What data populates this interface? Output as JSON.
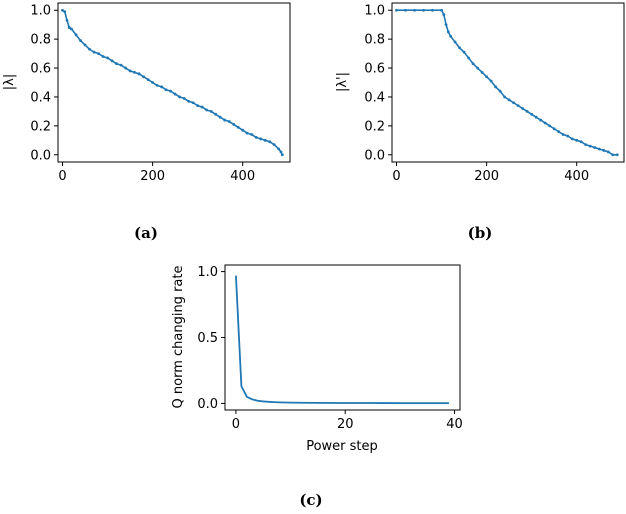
{
  "figure": {
    "captions": [
      "(a)",
      "(b)",
      "(c)"
    ]
  },
  "chart_data": [
    {
      "id": "a",
      "type": "scatter",
      "title": "",
      "xlabel": "",
      "ylabel": "|λ|",
      "xlim": [
        -10,
        505
      ],
      "ylim": [
        -0.05,
        1.05
      ],
      "xticks": [
        0,
        200,
        400
      ],
      "yticks": [
        0.0,
        0.2,
        0.4,
        0.6,
        0.8,
        1.0
      ],
      "ytick_labels": [
        "0.0",
        "0.2",
        "0.4",
        "0.6",
        "0.8",
        "1.0"
      ],
      "color": "#1f77b4",
      "points": [
        [
          0,
          1.0
        ],
        [
          5,
          0.99
        ],
        [
          10,
          0.93
        ],
        [
          15,
          0.88
        ],
        [
          20,
          0.87
        ],
        [
          30,
          0.83
        ],
        [
          40,
          0.79
        ],
        [
          50,
          0.76
        ],
        [
          60,
          0.73
        ],
        [
          70,
          0.71
        ],
        [
          80,
          0.7
        ],
        [
          90,
          0.68
        ],
        [
          100,
          0.67
        ],
        [
          110,
          0.65
        ],
        [
          120,
          0.63
        ],
        [
          130,
          0.62
        ],
        [
          140,
          0.6
        ],
        [
          150,
          0.58
        ],
        [
          160,
          0.57
        ],
        [
          170,
          0.56
        ],
        [
          180,
          0.54
        ],
        [
          190,
          0.52
        ],
        [
          200,
          0.5
        ],
        [
          210,
          0.48
        ],
        [
          220,
          0.47
        ],
        [
          230,
          0.45
        ],
        [
          240,
          0.44
        ],
        [
          250,
          0.42
        ],
        [
          260,
          0.4
        ],
        [
          270,
          0.39
        ],
        [
          280,
          0.37
        ],
        [
          290,
          0.36
        ],
        [
          300,
          0.34
        ],
        [
          310,
          0.33
        ],
        [
          320,
          0.31
        ],
        [
          330,
          0.3
        ],
        [
          340,
          0.28
        ],
        [
          350,
          0.26
        ],
        [
          360,
          0.24
        ],
        [
          370,
          0.23
        ],
        [
          380,
          0.21
        ],
        [
          390,
          0.19
        ],
        [
          400,
          0.17
        ],
        [
          410,
          0.15
        ],
        [
          420,
          0.14
        ],
        [
          430,
          0.12
        ],
        [
          440,
          0.11
        ],
        [
          450,
          0.1
        ],
        [
          460,
          0.09
        ],
        [
          470,
          0.07
        ],
        [
          480,
          0.04
        ],
        [
          485,
          0.02
        ],
        [
          488,
          0.0
        ]
      ]
    },
    {
      "id": "b",
      "type": "scatter",
      "title": "",
      "xlabel": "",
      "ylabel": "|λ'|",
      "xlim": [
        -10,
        505
      ],
      "ylim": [
        -0.05,
        1.05
      ],
      "xticks": [
        0,
        200,
        400
      ],
      "yticks": [
        0.0,
        0.2,
        0.4,
        0.6,
        0.8,
        1.0
      ],
      "ytick_labels": [
        "0.0",
        "0.2",
        "0.4",
        "0.6",
        "0.8",
        "1.0"
      ],
      "color": "#1f77b4",
      "points": [
        [
          0,
          1.0
        ],
        [
          20,
          1.0
        ],
        [
          40,
          1.0
        ],
        [
          60,
          1.0
        ],
        [
          80,
          1.0
        ],
        [
          100,
          1.0
        ],
        [
          105,
          0.97
        ],
        [
          110,
          0.9
        ],
        [
          115,
          0.85
        ],
        [
          120,
          0.82
        ],
        [
          130,
          0.78
        ],
        [
          140,
          0.74
        ],
        [
          150,
          0.71
        ],
        [
          160,
          0.67
        ],
        [
          170,
          0.63
        ],
        [
          180,
          0.6
        ],
        [
          190,
          0.57
        ],
        [
          200,
          0.54
        ],
        [
          210,
          0.51
        ],
        [
          220,
          0.47
        ],
        [
          230,
          0.44
        ],
        [
          240,
          0.4
        ],
        [
          250,
          0.38
        ],
        [
          260,
          0.36
        ],
        [
          270,
          0.34
        ],
        [
          280,
          0.32
        ],
        [
          290,
          0.3
        ],
        [
          300,
          0.28
        ],
        [
          310,
          0.26
        ],
        [
          320,
          0.24
        ],
        [
          330,
          0.22
        ],
        [
          340,
          0.2
        ],
        [
          350,
          0.18
        ],
        [
          360,
          0.16
        ],
        [
          370,
          0.14
        ],
        [
          380,
          0.13
        ],
        [
          390,
          0.11
        ],
        [
          400,
          0.1
        ],
        [
          410,
          0.09
        ],
        [
          420,
          0.07
        ],
        [
          430,
          0.06
        ],
        [
          440,
          0.05
        ],
        [
          450,
          0.04
        ],
        [
          460,
          0.03
        ],
        [
          470,
          0.02
        ],
        [
          480,
          0.0
        ],
        [
          490,
          0.0
        ]
      ]
    },
    {
      "id": "c",
      "type": "line",
      "title": "",
      "xlabel": "Power step",
      "ylabel": "Q norm changing rate",
      "xlim": [
        -2,
        41
      ],
      "ylim": [
        -0.05,
        1.05
      ],
      "xticks": [
        0,
        20,
        40
      ],
      "yticks": [
        0.0,
        0.5,
        1.0
      ],
      "ytick_labels": [
        "0.0",
        "0.5",
        "1.0"
      ],
      "color": "#1f77b4",
      "x": [
        0,
        1,
        2,
        3,
        4,
        5,
        6,
        7,
        8,
        9,
        10,
        12,
        15,
        20,
        25,
        30,
        35,
        39
      ],
      "y": [
        0.97,
        0.13,
        0.05,
        0.03,
        0.02,
        0.015,
        0.012,
        0.01,
        0.008,
        0.007,
        0.006,
        0.005,
        0.004,
        0.003,
        0.003,
        0.002,
        0.002,
        0.002
      ]
    }
  ]
}
